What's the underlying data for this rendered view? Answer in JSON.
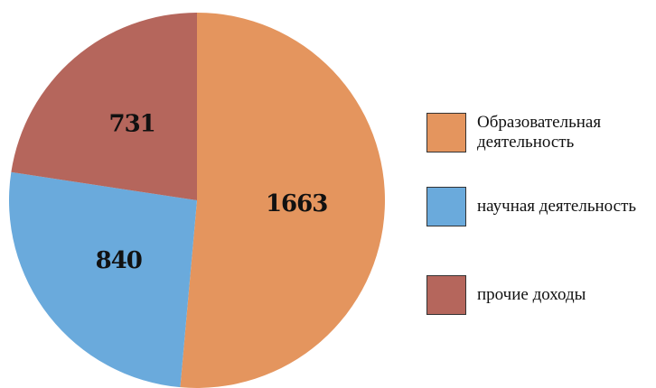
{
  "chart_data": {
    "type": "pie",
    "categories": [
      "Образовательная деятельность",
      "научная деятельность",
      "прочие доходы"
    ],
    "values": [
      1663,
      840,
      731
    ],
    "colors": [
      "#e4955e",
      "#6aaadc",
      "#b5665c"
    ],
    "legend": "right"
  }
}
